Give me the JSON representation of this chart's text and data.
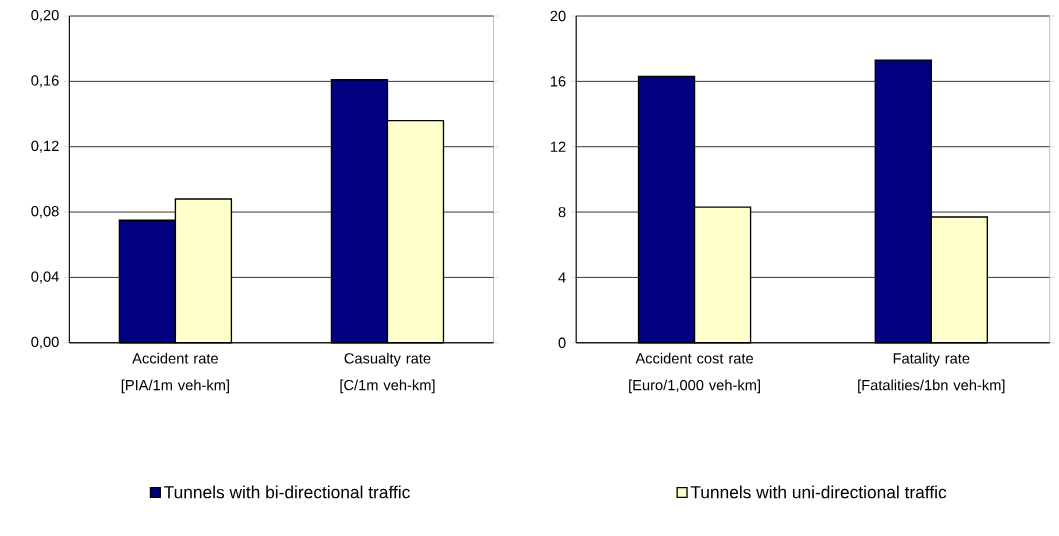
{
  "chart_data": [
    {
      "type": "bar",
      "categories": [
        "Accident rate [PIA/1m veh-km]",
        "Casualty rate [C/1m veh-km]"
      ],
      "series": [
        {
          "name": "Tunnels with bi-directional traffic",
          "color": "#000080",
          "values": [
            0.075,
            0.161
          ]
        },
        {
          "color": "#ffffcc",
          "values": [
            0.088,
            0.136
          ]
        }
      ],
      "ylim": [
        0,
        0.2
      ],
      "yticks": [
        {
          "value": 0,
          "label": "0,00"
        },
        {
          "value": 0.04,
          "label": "0,04"
        },
        {
          "value": 0.08,
          "label": "0,08"
        },
        {
          "value": 0.12,
          "label": "0,12"
        },
        {
          "value": 0.16,
          "label": "0,16"
        },
        {
          "value": 0.2,
          "label": "0,20"
        }
      ],
      "grid": "y",
      "legend": "bottom"
    },
    {
      "type": "bar",
      "categories": [
        "Accident cost rate [Euro/1,000 veh-km]",
        "Fatality rate [Fatalities/1bn veh-km]"
      ],
      "series": [
        {
          "color": "#000080",
          "values": [
            16.3,
            17.3
          ]
        },
        {
          "name": "Tunnels with uni-directional traffic",
          "color": "#ffffcc",
          "values": [
            8.3,
            7.7
          ]
        }
      ],
      "ylim": [
        0,
        20
      ],
      "yticks": [
        0,
        4,
        8,
        12,
        16,
        20
      ],
      "grid": "y",
      "legend": "bottom"
    }
  ]
}
